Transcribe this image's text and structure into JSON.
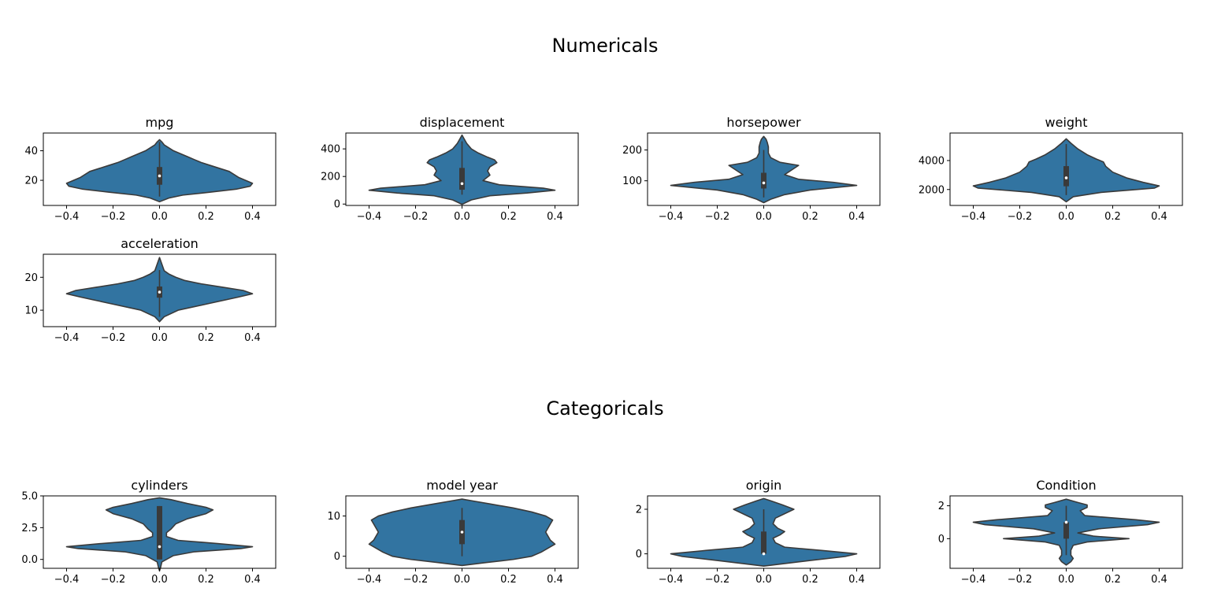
{
  "sections": [
    {
      "title": "Numericals"
    },
    {
      "title": "Categoricals"
    }
  ],
  "colors": {
    "violin_fill": "#3274a1",
    "violin_edge": "#3a3a3a",
    "box": "#3a3a3a",
    "median": "#ffffff"
  },
  "chart_data": [
    {
      "type": "violin",
      "title": "mpg",
      "xlim": [
        -0.5,
        0.5
      ],
      "xticks": [
        -0.4,
        -0.2,
        0,
        0.2,
        0.4
      ],
      "ylim": [
        3,
        52
      ],
      "yticks": [
        20,
        40
      ],
      "ytick_labels": [
        "20",
        "40"
      ],
      "box": {
        "whisker_low": 9,
        "q1": 17,
        "median": 23,
        "q3": 29,
        "whisker_high": 46
      },
      "profile": [
        [
          5.5,
          0
        ],
        [
          8,
          0.04
        ],
        [
          10,
          0.1
        ],
        [
          12,
          0.22
        ],
        [
          14,
          0.33
        ],
        [
          16,
          0.39
        ],
        [
          18,
          0.4
        ],
        [
          20,
          0.37
        ],
        [
          22,
          0.34
        ],
        [
          24,
          0.32
        ],
        [
          26,
          0.3
        ],
        [
          28,
          0.26
        ],
        [
          30,
          0.22
        ],
        [
          32,
          0.18
        ],
        [
          34,
          0.15
        ],
        [
          36,
          0.12
        ],
        [
          38,
          0.09
        ],
        [
          40,
          0.06
        ],
        [
          42,
          0.04
        ],
        [
          44,
          0.02
        ],
        [
          46,
          0.01
        ],
        [
          47.5,
          0
        ]
      ]
    },
    {
      "type": "violin",
      "title": "displacement",
      "xlim": [
        -0.5,
        0.5
      ],
      "xticks": [
        -0.4,
        -0.2,
        0,
        0.2,
        0.4
      ],
      "ylim": [
        -10,
        515
      ],
      "yticks": [
        0,
        200,
        400
      ],
      "ytick_labels": [
        "0",
        "200",
        "400"
      ],
      "box": {
        "whisker_low": 68,
        "q1": 104,
        "median": 148,
        "q3": 262,
        "whisker_high": 455
      },
      "profile": [
        [
          -2,
          0
        ],
        [
          30,
          0.04
        ],
        [
          60,
          0.12
        ],
        [
          80,
          0.28
        ],
        [
          100,
          0.4
        ],
        [
          115,
          0.35
        ],
        [
          140,
          0.16
        ],
        [
          170,
          0.09
        ],
        [
          210,
          0.12
        ],
        [
          240,
          0.11
        ],
        [
          270,
          0.12
        ],
        [
          300,
          0.15
        ],
        [
          320,
          0.14
        ],
        [
          340,
          0.11
        ],
        [
          370,
          0.07
        ],
        [
          400,
          0.04
        ],
        [
          440,
          0.02
        ],
        [
          470,
          0.01
        ],
        [
          500,
          0
        ]
      ]
    },
    {
      "type": "violin",
      "title": "horsepower",
      "xlim": [
        -0.5,
        0.5
      ],
      "xticks": [
        -0.4,
        -0.2,
        0,
        0.2,
        0.4
      ],
      "ylim": [
        20,
        255
      ],
      "yticks": [
        100,
        200
      ],
      "ytick_labels": [
        "100",
        "200"
      ],
      "box": {
        "whisker_low": 46,
        "q1": 75,
        "median": 93,
        "q3": 126,
        "whisker_high": 200
      },
      "profile": [
        [
          29,
          0
        ],
        [
          40,
          0.03
        ],
        [
          55,
          0.09
        ],
        [
          70,
          0.2
        ],
        [
          85,
          0.4
        ],
        [
          95,
          0.3
        ],
        [
          105,
          0.15
        ],
        [
          120,
          0.09
        ],
        [
          135,
          0.12
        ],
        [
          150,
          0.15
        ],
        [
          160,
          0.07
        ],
        [
          175,
          0.03
        ],
        [
          190,
          0.02
        ],
        [
          210,
          0.02
        ],
        [
          225,
          0.015
        ],
        [
          235,
          0.01
        ],
        [
          244,
          0
        ]
      ]
    },
    {
      "type": "violin",
      "title": "weight",
      "xlim": [
        -0.5,
        0.5
      ],
      "xticks": [
        -0.4,
        -0.2,
        0,
        0.2,
        0.4
      ],
      "ylim": [
        900,
        5900
      ],
      "yticks": [
        2000,
        4000
      ],
      "ytick_labels": [
        "2000",
        "4000"
      ],
      "box": {
        "whisker_low": 1613,
        "q1": 2224,
        "median": 2804,
        "q3": 3614,
        "whisker_high": 5140
      },
      "profile": [
        [
          1150,
          0
        ],
        [
          1500,
          0.03
        ],
        [
          1800,
          0.15
        ],
        [
          2100,
          0.38
        ],
        [
          2250,
          0.4
        ],
        [
          2500,
          0.33
        ],
        [
          2800,
          0.26
        ],
        [
          3200,
          0.2
        ],
        [
          3600,
          0.17
        ],
        [
          3900,
          0.16
        ],
        [
          4100,
          0.13
        ],
        [
          4400,
          0.09
        ],
        [
          4800,
          0.05
        ],
        [
          5200,
          0.02
        ],
        [
          5500,
          0
        ]
      ]
    },
    {
      "type": "violin",
      "title": "acceleration",
      "xlim": [
        -0.5,
        0.5
      ],
      "xticks": [
        -0.4,
        -0.2,
        0,
        0.2,
        0.4
      ],
      "ylim": [
        5,
        27
      ],
      "yticks": [
        10,
        20
      ],
      "ytick_labels": [
        "10",
        "20"
      ],
      "box": {
        "whisker_low": 8,
        "q1": 13.8,
        "median": 15.5,
        "q3": 17.2,
        "whisker_high": 22.2
      },
      "profile": [
        [
          6.5,
          0
        ],
        [
          8,
          0.02
        ],
        [
          10,
          0.08
        ],
        [
          12,
          0.21
        ],
        [
          14,
          0.34
        ],
        [
          15,
          0.4
        ],
        [
          16,
          0.36
        ],
        [
          17,
          0.27
        ],
        [
          18,
          0.18
        ],
        [
          19,
          0.11
        ],
        [
          20,
          0.07
        ],
        [
          21,
          0.04
        ],
        [
          22,
          0.02
        ],
        [
          24,
          0.01
        ],
        [
          26,
          0
        ]
      ]
    },
    {
      "type": "violin",
      "title": "cylinders",
      "xlim": [
        -0.5,
        0.5
      ],
      "xticks": [
        -0.4,
        -0.2,
        0,
        0.2,
        0.4
      ],
      "ylim": [
        -0.7,
        5.0
      ],
      "yticks": [
        0,
        2.5,
        5.0
      ],
      "ytick_labels": [
        "0.0",
        "2.5",
        "5.0"
      ],
      "box": {
        "whisker_low": 0,
        "q1": 0,
        "median": 1,
        "q3": 4.2,
        "whisker_high": 4.2
      },
      "profile": [
        [
          -0.9,
          0
        ],
        [
          -0.6,
          0.005
        ],
        [
          -0.2,
          0.01
        ],
        [
          0.3,
          0.06
        ],
        [
          0.6,
          0.15
        ],
        [
          0.85,
          0.35
        ],
        [
          1.0,
          0.4
        ],
        [
          1.25,
          0.25
        ],
        [
          1.5,
          0.08
        ],
        [
          1.8,
          0.03
        ],
        [
          2.1,
          0.03
        ],
        [
          2.4,
          0.05
        ],
        [
          2.8,
          0.07
        ],
        [
          3.2,
          0.12
        ],
        [
          3.6,
          0.2
        ],
        [
          3.9,
          0.23
        ],
        [
          4.1,
          0.2
        ],
        [
          4.4,
          0.12
        ],
        [
          4.7,
          0.05
        ],
        [
          4.85,
          0
        ]
      ]
    },
    {
      "type": "violin",
      "title": "model year",
      "xlim": [
        -0.5,
        0.5
      ],
      "xticks": [
        -0.4,
        -0.2,
        0,
        0.2,
        0.4
      ],
      "ylim": [
        -3,
        15
      ],
      "yticks": [
        0,
        10
      ],
      "ytick_labels": [
        "0",
        "10"
      ],
      "box": {
        "whisker_low": 0,
        "q1": 3,
        "median": 6,
        "q3": 9,
        "whisker_high": 12
      },
      "profile": [
        [
          -2.3,
          0
        ],
        [
          -1.6,
          0.1
        ],
        [
          -0.8,
          0.22
        ],
        [
          0,
          0.3
        ],
        [
          1,
          0.34
        ],
        [
          2,
          0.37
        ],
        [
          3,
          0.4
        ],
        [
          4,
          0.38
        ],
        [
          5,
          0.37
        ],
        [
          6,
          0.36
        ],
        [
          7,
          0.37
        ],
        [
          8,
          0.38
        ],
        [
          9,
          0.39
        ],
        [
          10,
          0.36
        ],
        [
          11,
          0.3
        ],
        [
          12,
          0.22
        ],
        [
          13,
          0.12
        ],
        [
          13.7,
          0.05
        ],
        [
          14.2,
          0
        ]
      ]
    },
    {
      "type": "violin",
      "title": "origin",
      "xlim": [
        -0.5,
        0.5
      ],
      "xticks": [
        -0.4,
        -0.2,
        0,
        0.2,
        0.4
      ],
      "ylim": [
        -0.65,
        2.6
      ],
      "yticks": [
        0,
        2
      ],
      "ytick_labels": [
        "0",
        "2"
      ],
      "box": {
        "whisker_low": 0,
        "q1": 0,
        "median": 0,
        "q3": 1,
        "whisker_high": 2
      },
      "profile": [
        [
          -0.55,
          0
        ],
        [
          -0.45,
          0.08
        ],
        [
          -0.3,
          0.2
        ],
        [
          -0.12,
          0.35
        ],
        [
          0,
          0.4
        ],
        [
          0.15,
          0.25
        ],
        [
          0.3,
          0.09
        ],
        [
          0.5,
          0.05
        ],
        [
          0.7,
          0.04
        ],
        [
          0.85,
          0.07
        ],
        [
          1.0,
          0.09
        ],
        [
          1.15,
          0.06
        ],
        [
          1.35,
          0.04
        ],
        [
          1.6,
          0.05
        ],
        [
          1.8,
          0.09
        ],
        [
          2.0,
          0.13
        ],
        [
          2.2,
          0.08
        ],
        [
          2.38,
          0.03
        ],
        [
          2.48,
          0
        ]
      ]
    },
    {
      "type": "violin",
      "title": "Condition",
      "xlim": [
        -0.5,
        0.5
      ],
      "xticks": [
        -0.4,
        -0.2,
        0,
        0.2,
        0.4
      ],
      "ylim": [
        -1.8,
        2.6
      ],
      "yticks": [
        0,
        2
      ],
      "ytick_labels": [
        "0",
        "2"
      ],
      "box": {
        "whisker_low": -1,
        "q1": 0,
        "median": 1,
        "q3": 1,
        "whisker_high": 2
      },
      "profile": [
        [
          -1.6,
          0
        ],
        [
          -1.4,
          0.02
        ],
        [
          -1.2,
          0.03
        ],
        [
          -1.0,
          0.02
        ],
        [
          -0.7,
          0.02
        ],
        [
          -0.4,
          0.03
        ],
        [
          -0.2,
          0.09
        ],
        [
          0,
          0.27
        ],
        [
          0.15,
          0.12
        ],
        [
          0.35,
          0.05
        ],
        [
          0.6,
          0.14
        ],
        [
          0.85,
          0.35
        ],
        [
          1.0,
          0.4
        ],
        [
          1.15,
          0.3
        ],
        [
          1.4,
          0.08
        ],
        [
          1.7,
          0.06
        ],
        [
          1.9,
          0.09
        ],
        [
          2.05,
          0.09
        ],
        [
          2.2,
          0.05
        ],
        [
          2.4,
          0
        ]
      ]
    }
  ]
}
